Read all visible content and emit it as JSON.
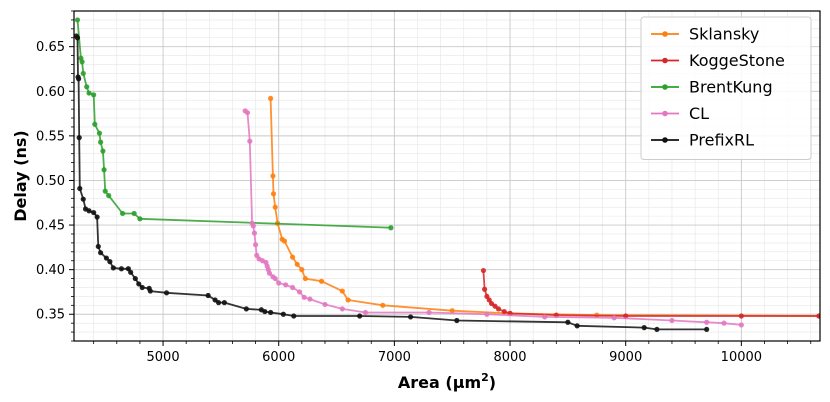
{
  "chart_data": {
    "type": "line",
    "xlabel": "Area (µm²)",
    "xlabel_main": "Area (µm",
    "xlabel_sup": "2",
    "xlabel_close": ")",
    "ylabel": "Delay (ns)",
    "xlim": [
      4230,
      10680
    ],
    "ylim": [
      0.32,
      0.69
    ],
    "xticks": [
      5000,
      6000,
      7000,
      8000,
      9000,
      10000
    ],
    "yticks": [
      0.35,
      0.4,
      0.45,
      0.5,
      0.55,
      0.6,
      0.65
    ],
    "xtick_labels": [
      "5000",
      "6000",
      "7000",
      "8000",
      "9000",
      "10000"
    ],
    "ytick_labels": [
      "0.35",
      "0.40",
      "0.45",
      "0.50",
      "0.55",
      "0.60",
      "0.65"
    ],
    "grid": true,
    "legend_position": "top-right",
    "series": [
      {
        "name": "Sklansky",
        "color": "#ff7f0e",
        "points": [
          [
            5930,
            0.592
          ],
          [
            5950,
            0.505
          ],
          [
            5955,
            0.485
          ],
          [
            5970,
            0.47
          ],
          [
            5990,
            0.452
          ],
          [
            6030,
            0.434
          ],
          [
            6050,
            0.432
          ],
          [
            6120,
            0.414
          ],
          [
            6160,
            0.406
          ],
          [
            6200,
            0.4
          ],
          [
            6230,
            0.39
          ],
          [
            6370,
            0.387
          ],
          [
            6550,
            0.376
          ],
          [
            6600,
            0.366
          ],
          [
            6900,
            0.36
          ],
          [
            7500,
            0.354
          ],
          [
            8000,
            0.351
          ],
          [
            8750,
            0.349
          ],
          [
            10680,
            0.348
          ]
        ]
      },
      {
        "name": "KoggeStone",
        "color": "#d62728",
        "points": [
          [
            7770,
            0.399
          ],
          [
            7780,
            0.378
          ],
          [
            7800,
            0.37
          ],
          [
            7820,
            0.366
          ],
          [
            7840,
            0.362
          ],
          [
            7870,
            0.359
          ],
          [
            7900,
            0.356
          ],
          [
            7950,
            0.353
          ],
          [
            8000,
            0.351
          ],
          [
            8400,
            0.349
          ],
          [
            9000,
            0.348
          ],
          [
            10000,
            0.348
          ],
          [
            10670,
            0.348
          ]
        ]
      },
      {
        "name": "BrentKung",
        "color": "#2ca02c",
        "points": [
          [
            4260,
            0.68
          ],
          [
            4290,
            0.637
          ],
          [
            4300,
            0.633
          ],
          [
            4310,
            0.62
          ],
          [
            4340,
            0.605
          ],
          [
            4360,
            0.598
          ],
          [
            4400,
            0.596
          ],
          [
            4410,
            0.563
          ],
          [
            4450,
            0.553
          ],
          [
            4460,
            0.543
          ],
          [
            4480,
            0.533
          ],
          [
            4490,
            0.512
          ],
          [
            4500,
            0.488
          ],
          [
            4530,
            0.483
          ],
          [
            4650,
            0.463
          ],
          [
            4750,
            0.463
          ],
          [
            4800,
            0.457
          ],
          [
            6970,
            0.447
          ]
        ]
      },
      {
        "name": "CL",
        "color": "#e377c2",
        "points": [
          [
            5710,
            0.578
          ],
          [
            5730,
            0.576
          ],
          [
            5750,
            0.544
          ],
          [
            5770,
            0.452
          ],
          [
            5780,
            0.449
          ],
          [
            5790,
            0.441
          ],
          [
            5800,
            0.428
          ],
          [
            5810,
            0.416
          ],
          [
            5830,
            0.412
          ],
          [
            5860,
            0.41
          ],
          [
            5890,
            0.408
          ],
          [
            5900,
            0.404
          ],
          [
            5910,
            0.4
          ],
          [
            5920,
            0.396
          ],
          [
            5950,
            0.392
          ],
          [
            5970,
            0.39
          ],
          [
            6000,
            0.385
          ],
          [
            6060,
            0.383
          ],
          [
            6120,
            0.38
          ],
          [
            6180,
            0.375
          ],
          [
            6220,
            0.369
          ],
          [
            6270,
            0.367
          ],
          [
            6400,
            0.361
          ],
          [
            6550,
            0.356
          ],
          [
            6750,
            0.352
          ],
          [
            7300,
            0.352
          ],
          [
            7800,
            0.35
          ],
          [
            8300,
            0.347
          ],
          [
            8900,
            0.346
          ],
          [
            9400,
            0.343
          ],
          [
            9700,
            0.341
          ],
          [
            9850,
            0.34
          ],
          [
            10000,
            0.338
          ]
        ]
      },
      {
        "name": "PrefixRL",
        "color": "#111111",
        "points": [
          [
            4250,
            0.662
          ],
          [
            4260,
            0.66
          ],
          [
            4265,
            0.616
          ],
          [
            4270,
            0.614
          ],
          [
            4275,
            0.548
          ],
          [
            4280,
            0.491
          ],
          [
            4310,
            0.479
          ],
          [
            4330,
            0.468
          ],
          [
            4360,
            0.466
          ],
          [
            4400,
            0.464
          ],
          [
            4430,
            0.459
          ],
          [
            4440,
            0.426
          ],
          [
            4460,
            0.419
          ],
          [
            4510,
            0.413
          ],
          [
            4540,
            0.409
          ],
          [
            4570,
            0.402
          ],
          [
            4640,
            0.401
          ],
          [
            4700,
            0.401
          ],
          [
            4720,
            0.397
          ],
          [
            4760,
            0.39
          ],
          [
            4790,
            0.384
          ],
          [
            4820,
            0.38
          ],
          [
            4880,
            0.379
          ],
          [
            4890,
            0.376
          ],
          [
            5030,
            0.374
          ],
          [
            5390,
            0.371
          ],
          [
            5450,
            0.366
          ],
          [
            5480,
            0.363
          ],
          [
            5530,
            0.363
          ],
          [
            5720,
            0.356
          ],
          [
            5850,
            0.355
          ],
          [
            5880,
            0.353
          ],
          [
            5930,
            0.352
          ],
          [
            6040,
            0.35
          ],
          [
            6130,
            0.348
          ],
          [
            6700,
            0.348
          ],
          [
            7140,
            0.347
          ],
          [
            7540,
            0.343
          ],
          [
            8500,
            0.341
          ],
          [
            8580,
            0.337
          ],
          [
            9160,
            0.335
          ],
          [
            9270,
            0.333
          ],
          [
            9700,
            0.333
          ]
        ]
      }
    ]
  }
}
